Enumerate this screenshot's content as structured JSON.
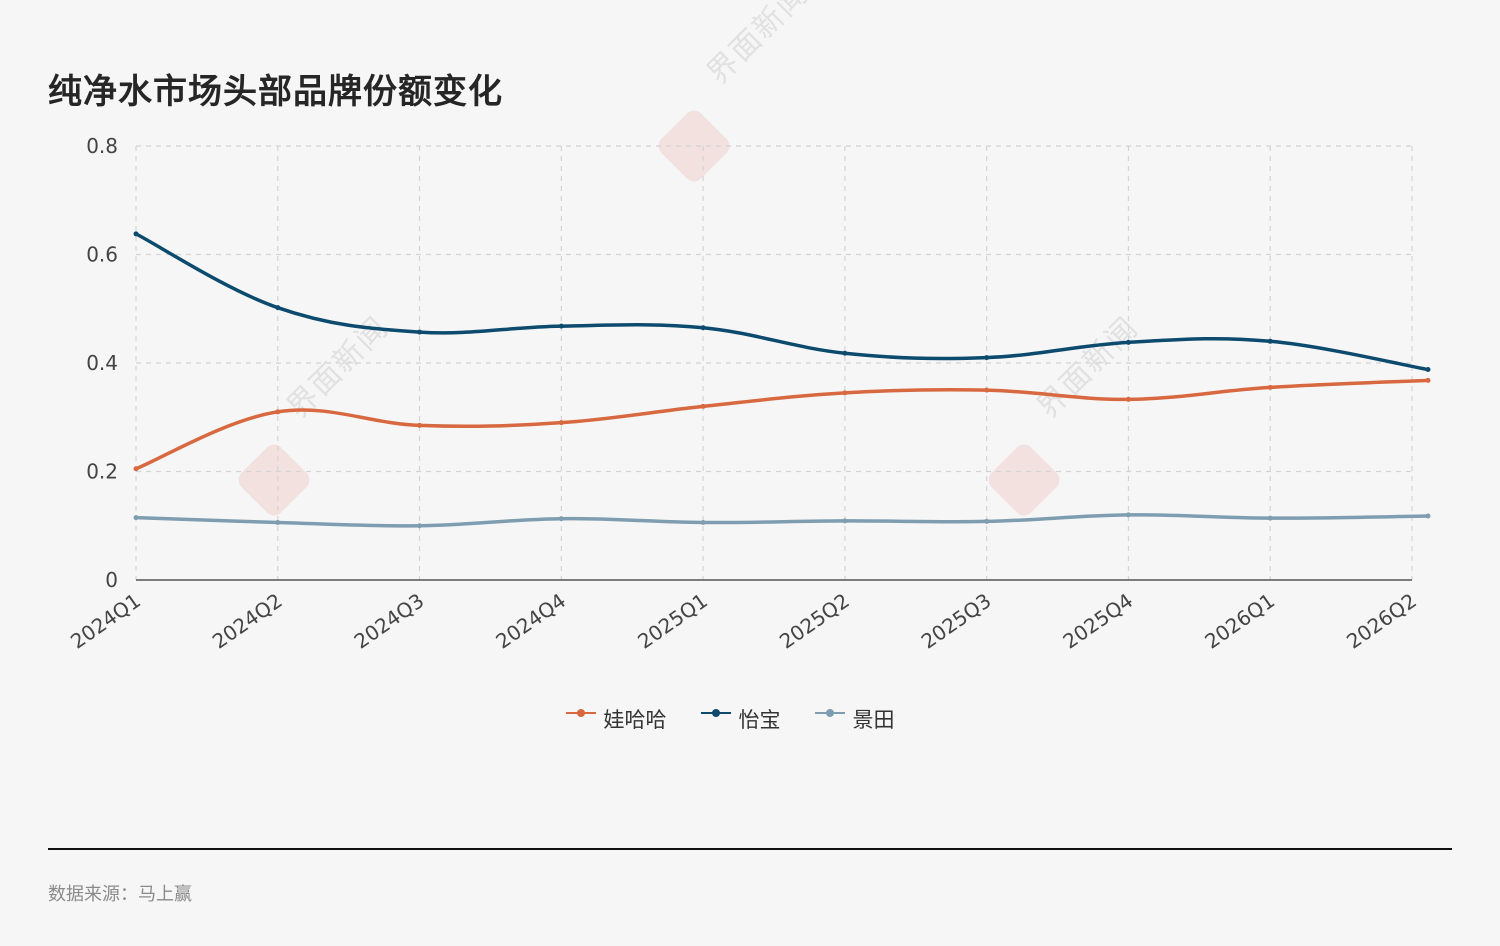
{
  "title": "纯净水市场头部品牌份额变化",
  "source": "数据来源：马上赢",
  "watermark": "界面新闻",
  "chart_data": {
    "type": "line",
    "x": [
      "2024Q1",
      "2024Q2",
      "2024Q3",
      "2024Q4",
      "2025Q1",
      "2025Q2",
      "2025Q3",
      "2025Q4",
      "2026Q1",
      "2026Q2"
    ],
    "yticks": [
      "0",
      "0.2",
      "0.4",
      "0.6",
      "0.8"
    ],
    "ylim": [
      0,
      0.8
    ],
    "grid": true,
    "legend_position": "bottom",
    "series": [
      {
        "name": "娃哈哈",
        "color": "#d8683f",
        "values": [
          0.205,
          0.31,
          0.285,
          0.29,
          0.32,
          0.345,
          0.35,
          0.333,
          0.355,
          0.368
        ]
      },
      {
        "name": "怡宝",
        "color": "#0c4a6e",
        "values": [
          0.638,
          0.502,
          0.457,
          0.468,
          0.465,
          0.418,
          0.41,
          0.438,
          0.44,
          0.388
        ]
      },
      {
        "name": "景田",
        "color": "#7e9db0",
        "values": [
          0.115,
          0.106,
          0.1,
          0.113,
          0.106,
          0.109,
          0.108,
          0.12,
          0.114,
          0.118
        ]
      }
    ]
  }
}
